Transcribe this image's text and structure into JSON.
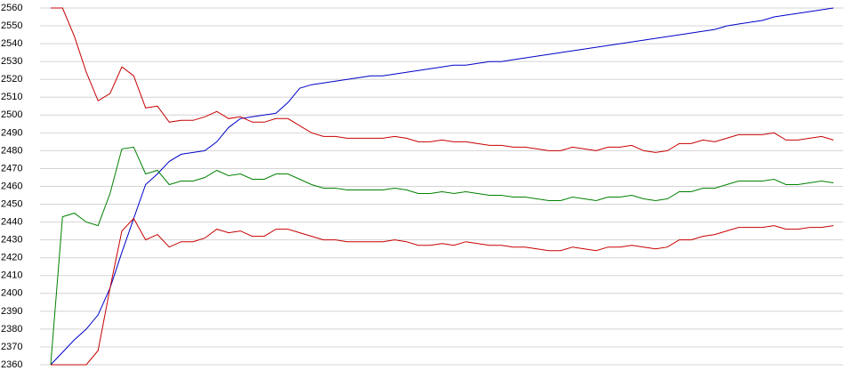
{
  "chart_data": {
    "type": "line",
    "categories": [
      null,
      null,
      null,
      null,
      null,
      null,
      null,
      null,
      null,
      null,
      null,
      null,
      null,
      null,
      null,
      null,
      null,
      null,
      null,
      null,
      null,
      null,
      null,
      null,
      null,
      null,
      null,
      null,
      null,
      null,
      null,
      null,
      null,
      null,
      null,
      null,
      null,
      null,
      null,
      null,
      null,
      null,
      null,
      null,
      null,
      null,
      null,
      null,
      null,
      null,
      null,
      null,
      null,
      null,
      null,
      null,
      null,
      null,
      null,
      null,
      null,
      null,
      null,
      null,
      null,
      null,
      null
    ],
    "series": [
      {
        "color": "#0000c8",
        "values": [
          2360,
          2367,
          2374,
          2380,
          2388,
          2403,
          2423,
          2442,
          2461,
          2467,
          2474,
          2478,
          2479,
          2480,
          2485,
          2493,
          2498,
          2499,
          2500,
          2501,
          2507,
          2515,
          2517,
          2518,
          2519,
          2520,
          2521,
          2522,
          2522,
          2523,
          2524,
          2525,
          2526,
          2527,
          2528,
          2528,
          2529,
          2530,
          2530,
          2531,
          2532,
          2533,
          2534,
          2535,
          2536,
          2537,
          2538,
          2539,
          2540,
          2541,
          2542,
          2543,
          2544,
          2545,
          2546,
          2547,
          2548,
          2550,
          2551,
          2552,
          2553,
          2555,
          2556,
          2557,
          2558,
          2559,
          2560
        ]
      },
      {
        "color": "#c80000",
        "values": [
          2560,
          2560,
          2544,
          2524,
          2508,
          2512,
          2527,
          2522,
          2504,
          2505,
          2496,
          2497,
          2497,
          2499,
          2502,
          2498,
          2499,
          2496,
          2496,
          2498,
          2498,
          2494,
          2490,
          2488,
          2488,
          2487,
          2487,
          2487,
          2487,
          2488,
          2487,
          2485,
          2485,
          2486,
          2485,
          2485,
          2484,
          2483,
          2483,
          2482,
          2482,
          2481,
          2480,
          2480,
          2482,
          2481,
          2480,
          2482,
          2482,
          2483,
          2480,
          2479,
          2480,
          2484,
          2484,
          2486,
          2485,
          2487,
          2489,
          2489,
          2489,
          2490,
          2486,
          2486,
          2487,
          2488,
          2486
        ]
      },
      {
        "color": "#008000",
        "values": [
          2360,
          2443,
          2445,
          2440,
          2438,
          2456,
          2481,
          2482,
          2467,
          2469,
          2461,
          2463,
          2463,
          2465,
          2469,
          2466,
          2467,
          2464,
          2464,
          2467,
          2467,
          2464,
          2461,
          2459,
          2459,
          2458,
          2458,
          2458,
          2458,
          2459,
          2458,
          2456,
          2456,
          2457,
          2456,
          2457,
          2456,
          2455,
          2455,
          2454,
          2454,
          2453,
          2452,
          2452,
          2454,
          2453,
          2452,
          2454,
          2454,
          2455,
          2453,
          2452,
          2453,
          2457,
          2457,
          2459,
          2459,
          2461,
          2463,
          2463,
          2463,
          2464,
          2461,
          2461,
          2462,
          2463,
          2462
        ]
      },
      {
        "color": "#c80000",
        "values": [
          2360,
          2360,
          2360,
          2360,
          2368,
          2403,
          2435,
          2442,
          2430,
          2433,
          2426,
          2429,
          2429,
          2431,
          2436,
          2434,
          2435,
          2432,
          2432,
          2436,
          2436,
          2434,
          2432,
          2430,
          2430,
          2429,
          2429,
          2429,
          2429,
          2430,
          2429,
          2427,
          2427,
          2428,
          2427,
          2429,
          2428,
          2427,
          2427,
          2426,
          2426,
          2425,
          2424,
          2424,
          2426,
          2425,
          2424,
          2426,
          2426,
          2427,
          2426,
          2425,
          2426,
          2430,
          2430,
          2432,
          2433,
          2435,
          2437,
          2437,
          2437,
          2438,
          2436,
          2436,
          2437,
          2437,
          2438
        ]
      }
    ],
    "ylim": [
      2360,
      2560
    ],
    "yticks": [
      2360,
      2370,
      2380,
      2390,
      2400,
      2410,
      2420,
      2430,
      2440,
      2450,
      2460,
      2470,
      2480,
      2490,
      2500,
      2510,
      2520,
      2530,
      2540,
      2550,
      2560
    ],
    "grid": true
  }
}
